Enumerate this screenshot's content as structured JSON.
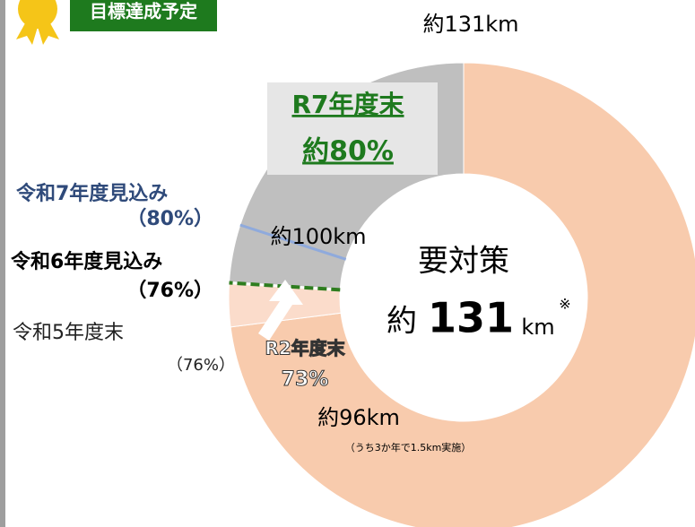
{
  "badge": "目標達成予定",
  "chart_data": {
    "type": "donut",
    "total_label": "約131km",
    "center_title": "要対策",
    "center_prefix": "約",
    "center_value": "131",
    "center_unit": "km",
    "center_note": "※",
    "values": [
      73,
      3,
      24
    ],
    "colors": [
      "#f8cbad",
      "#fbdccb",
      "#bfbfbf"
    ],
    "markers": [
      {
        "label": "令和5年度末",
        "value_label": "（76%）",
        "value": 76,
        "color": "#ffffff",
        "dashed": false
      },
      {
        "label": "令和6年度見込み",
        "value_label": "（76%）",
        "value": 76,
        "color": "#2e7d1f",
        "dashed": true
      },
      {
        "label": "令和7年度見込み",
        "value_label": "（80%）",
        "value": 80,
        "color": "#8faadc",
        "dashed": false
      }
    ],
    "annotations": {
      "r7_title": "R7年度末",
      "r7_value": "約80%",
      "gray_km": "約100km",
      "peach_title": "R2年度末",
      "peach_pct": "73%",
      "peach_km": "約96km",
      "peach_note": "（うち3か年で1.5km実施）"
    }
  }
}
